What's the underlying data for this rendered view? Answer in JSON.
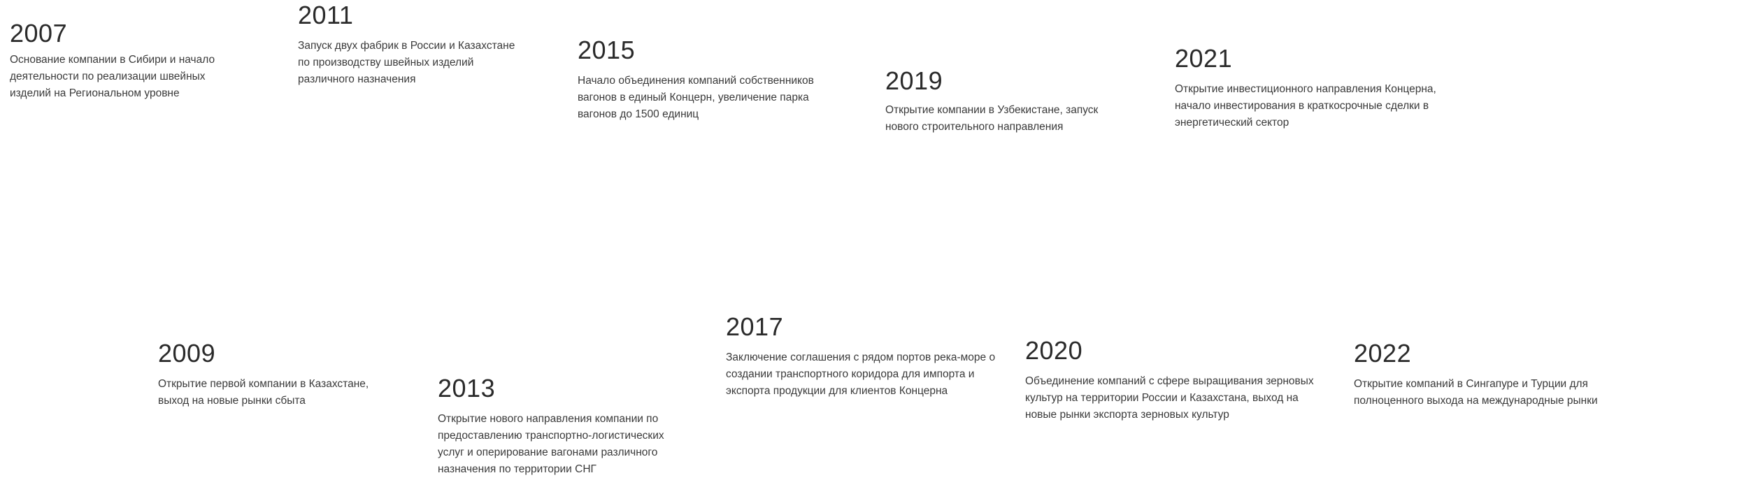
{
  "milestones": [
    {
      "year": "2007",
      "text": "Основание компании в Сибири и начало деятельности по реализации швейных изделий на Региональном уровне"
    },
    {
      "year": "2009",
      "text": "Открытие первой компании в Казахстане, выход на новые рынки сбыта"
    },
    {
      "year": "2011",
      "text": "Запуск двух фабрик в России и Казахстане по производству швейных изделий различного назначения"
    },
    {
      "year": "2013",
      "text": "Открытие нового направления компании по предоставлению транспортно-логистических услуг и оперирование вагонами различного назначения по территории СНГ"
    },
    {
      "year": "2015",
      "text": "Начало объединения компаний собственников вагонов в единый Концерн, увеличение парка вагонов до 1500 единиц"
    },
    {
      "year": "2017",
      "text": "Заключение соглашения с рядом портов река-море о создании транспортного коридора для импорта и экспорта продукции для клиентов Концерна"
    },
    {
      "year": "2019",
      "text": "Открытие компании в Узбекистане, запуск нового строительного направления"
    },
    {
      "year": "2020",
      "text": "Объединение компаний с сферe выращивания зерновых культур на территории России и Казахстана, выход на новые рынки экспорта зерновых культур"
    },
    {
      "year": "2021",
      "text": "Открытие инвестиционного направления Концерна, начало инвестирования в краткосрочные сделки в энергетический сектор"
    },
    {
      "year": "2022",
      "text": "Открытие компаний в Сингапуре и Турции для полноценного выхода на международные рынки"
    }
  ],
  "colors": {
    "bar_dark": "#1a6fd8",
    "bar_light": "#4fa8ee",
    "marker_top": "#2279e0",
    "marker_fade": "#dcebfb",
    "year_text": "#2a2a2a",
    "desc_text": "#3a3a3a"
  }
}
